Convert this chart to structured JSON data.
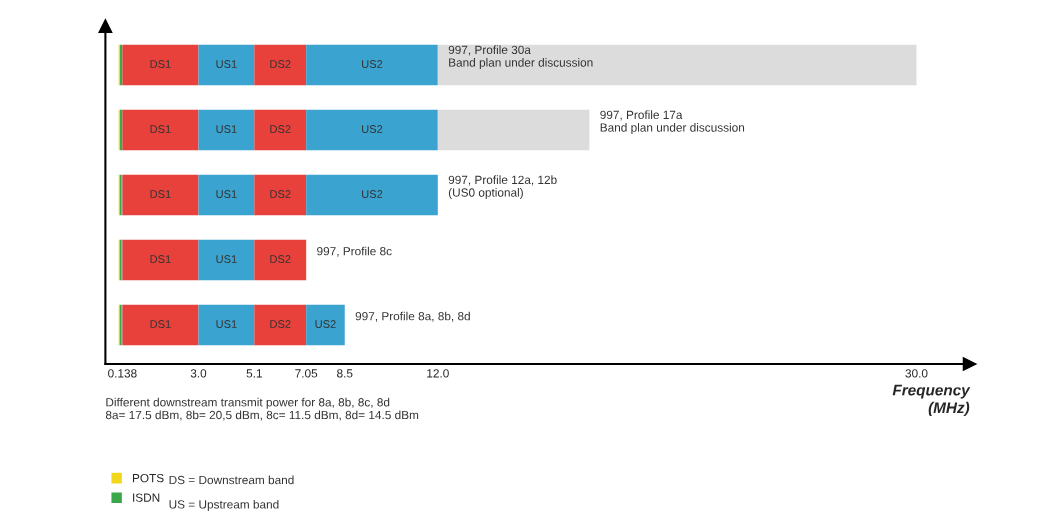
{
  "chart_data": {
    "type": "bar",
    "orientation": "horizontal",
    "categories": [
      "997, Profile 30a\nBand plan under discussion",
      "997, Profile 17a\nBand plan under discussion",
      "997, Profile 12a, 12b\n(US0 optional)",
      "997, Profile 8c",
      "997, Profile 8a, 8b, 8d"
    ],
    "series": [
      {
        "name": "POTS",
        "color": "#f2d81c",
        "base": [
          0,
          0,
          0,
          0,
          0
        ],
        "values": [
          0.05,
          0.05,
          0.04,
          0.04,
          0.04
        ]
      },
      {
        "name": "ISDN",
        "color": "#3aa84a",
        "base": [
          0.05,
          0.05,
          0.04,
          0.04,
          0.04
        ],
        "values": [
          0.088,
          0.088,
          0.06,
          0.06,
          0.06
        ]
      },
      {
        "color": "#3ba3cf",
        "base": [
          null,
          null,
          0.1,
          0.1,
          0.1
        ],
        "values": [
          null,
          null,
          0.038,
          0.038,
          0.038
        ]
      },
      {
        "name": "DS1",
        "color": "#e8413b",
        "base": [
          0.138,
          0.138,
          0.138,
          0.138,
          0.138
        ],
        "values": [
          2.862,
          2.862,
          2.862,
          2.862,
          2.862
        ]
      },
      {
        "name": "US1",
        "color": "#3ba3cf",
        "base": [
          3.0,
          3.0,
          3.0,
          3.0,
          3.0
        ],
        "values": [
          2.1,
          2.1,
          2.1,
          2.1,
          2.1
        ]
      },
      {
        "name": "DS2",
        "color": "#e8413b",
        "base": [
          5.1,
          5.1,
          5.1,
          5.1,
          5.1
        ],
        "values": [
          1.95,
          1.95,
          1.95,
          1.95,
          1.95
        ]
      },
      {
        "name": "US2",
        "color": "#3ba3cf",
        "base": [
          7.05,
          7.05,
          7.05,
          null,
          7.05
        ],
        "values": [
          4.95,
          4.95,
          4.95,
          null,
          1.45
        ]
      },
      {
        "color": "#dcdcdc",
        "base": [
          12.0,
          12.0,
          null,
          null,
          null
        ],
        "values": [
          18.0,
          5.7,
          null,
          null,
          null
        ]
      }
    ],
    "xlim": [
      -0.5,
      32
    ],
    "xticks": [
      0.138,
      {
        "value": 3.0,
        "label": "3.0"
      },
      5.1,
      7.05,
      8.5,
      {
        "value": 12.0,
        "label": "12.0"
      },
      {
        "value": 30.0,
        "label": "30.0"
      }
    ],
    "xlabel": "Frequency\n(MHz)",
    "tick_labels": "x",
    "grid": false,
    "legend": "bottom left",
    "annotations": [
      "Different downstream transmit power for 8a, 8b, 8c, 8d\n8a= 17.5 dBm, 8b= 20,5 dBm, 8c= 11.5 dBm, 8d= 14.5 dBm",
      "DS = Downstream band",
      "US = Upstream band"
    ]
  }
}
